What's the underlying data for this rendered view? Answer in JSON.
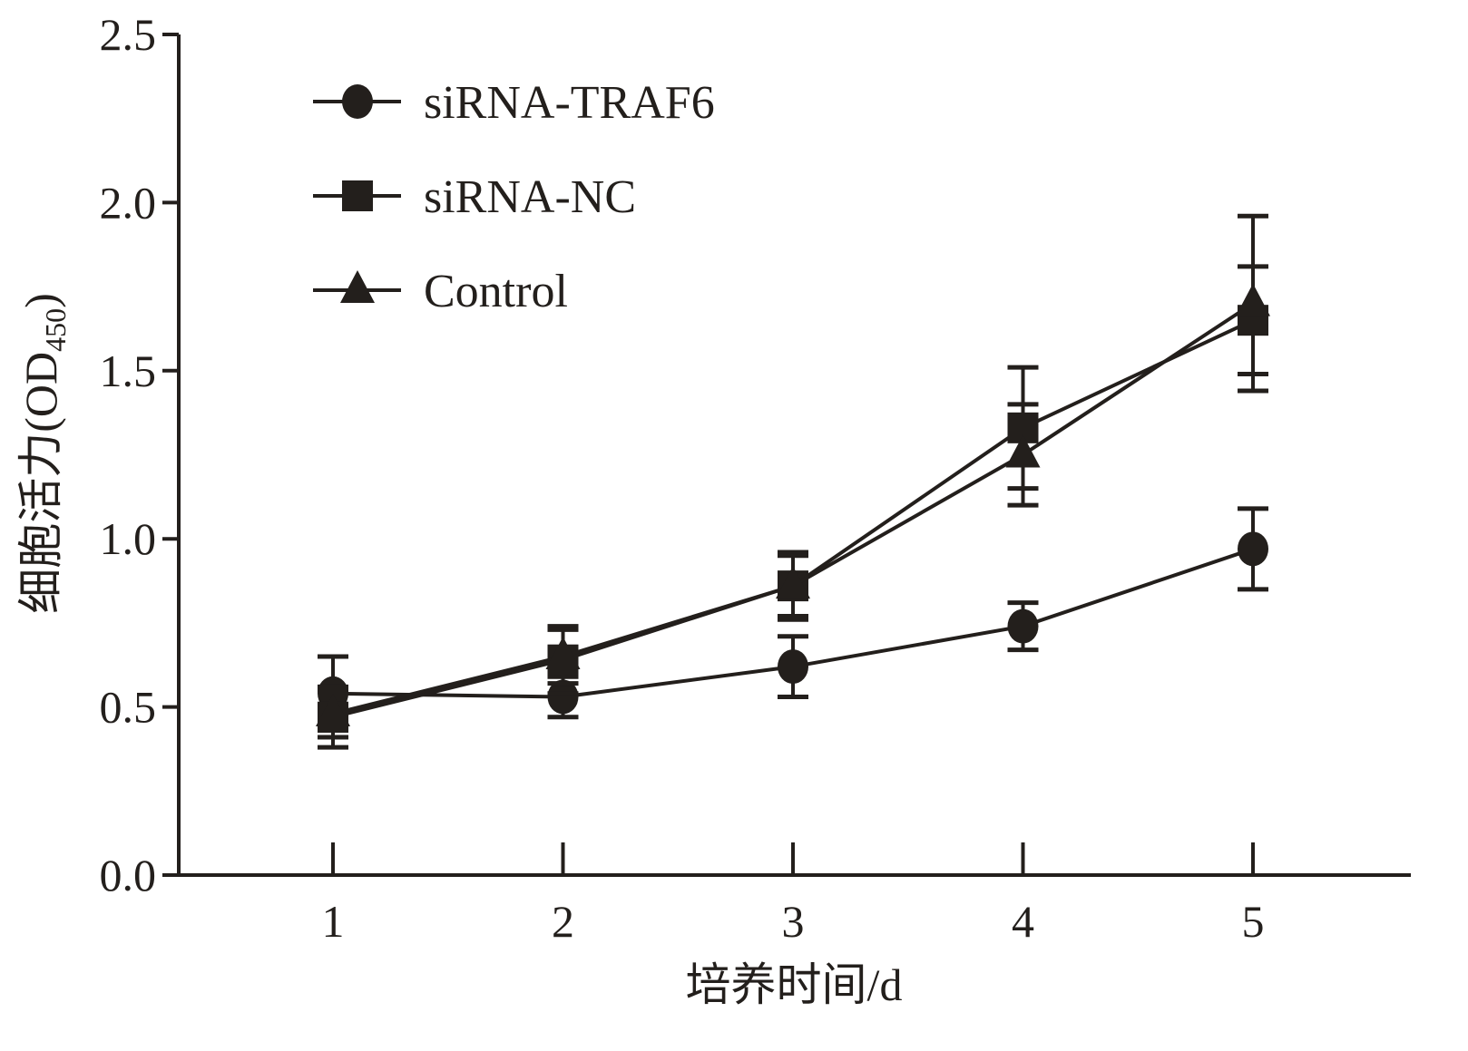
{
  "chart_data": {
    "type": "line",
    "title": "",
    "xlabel": "培养时间/d",
    "ylabel": "细胞活力(OD",
    "ylabel_sub": "450",
    "ylabel_close": ")",
    "x": [
      1,
      2,
      3,
      4,
      5
    ],
    "x_tick_labels": [
      "1",
      "2",
      "3",
      "4",
      "5"
    ],
    "xlim": [
      0.33,
      5.7
    ],
    "ylim": [
      0,
      2.5
    ],
    "y_ticks": [
      0.0,
      0.5,
      1.0,
      1.5,
      2.0,
      2.5
    ],
    "y_tick_labels": [
      "0.0",
      "0.5",
      "1.0",
      "1.5",
      "2.0",
      "2.5"
    ],
    "grid": false,
    "legend_position": "top-left",
    "color": "#231f1c",
    "series": [
      {
        "name": "siRNA-TRAF6",
        "marker": "circle",
        "values": [
          0.54,
          0.53,
          0.62,
          0.74,
          0.97
        ],
        "errors": [
          0.11,
          0.06,
          0.09,
          0.07,
          0.12
        ]
      },
      {
        "name": "siRNA-NC",
        "marker": "square",
        "values": [
          0.47,
          0.64,
          0.86,
          1.33,
          1.65
        ],
        "errors": [
          0.09,
          0.1,
          0.1,
          0.18,
          0.16
        ]
      },
      {
        "name": "Control",
        "marker": "triangle",
        "values": [
          0.48,
          0.65,
          0.86,
          1.25,
          1.7
        ],
        "errors": [
          0.07,
          0.08,
          0.09,
          0.15,
          0.26
        ]
      }
    ]
  }
}
